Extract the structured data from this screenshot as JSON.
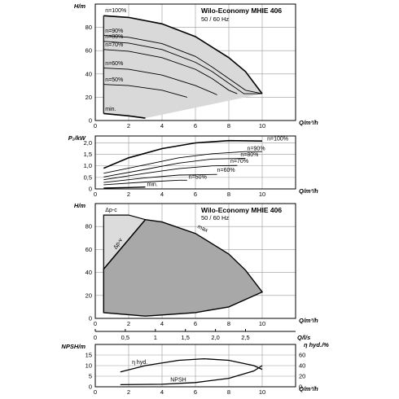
{
  "chart_data": [
    {
      "type": "line",
      "title": "Wilo-Economy MHIE 406",
      "subtitle": "50 / 60 Hz",
      "xlabel": "Q/m³/h",
      "ylabel": "H/m",
      "xlim": [
        0,
        12
      ],
      "ylim": [
        0,
        100
      ],
      "xticks": [
        0,
        2,
        4,
        6,
        8,
        10
      ],
      "yticks": [
        0,
        20,
        40,
        60,
        80
      ],
      "grid": true,
      "series": [
        {
          "name": "n=100%",
          "points": [
            [
              0.5,
              90
            ],
            [
              2,
              88.5
            ],
            [
              4,
              83
            ],
            [
              6,
              72
            ],
            [
              8,
              54
            ],
            [
              9,
              42
            ],
            [
              10,
              23
            ]
          ]
        },
        {
          "name": "n=90%",
          "points": [
            [
              0.5,
              73
            ],
            [
              2,
              71.5
            ],
            [
              4,
              66
            ],
            [
              6,
              55
            ],
            [
              7,
              46
            ],
            [
              8,
              36
            ],
            [
              9,
              26
            ],
            [
              10,
              23
            ]
          ]
        },
        {
          "name": "n=80%",
          "points": [
            [
              0.5,
              68
            ],
            [
              2,
              66.5
            ],
            [
              4,
              61
            ],
            [
              6,
              50
            ],
            [
              7,
              42
            ],
            [
              8,
              32
            ],
            [
              8.9,
              23
            ],
            [
              10,
              23
            ]
          ]
        },
        {
          "name": "n=70%",
          "points": [
            [
              0.5,
              61
            ],
            [
              2,
              59.5
            ],
            [
              4,
              54
            ],
            [
              6,
              44
            ],
            [
              7,
              36
            ],
            [
              8,
              26
            ],
            [
              8.5,
              23
            ]
          ]
        },
        {
          "name": "n=60%",
          "points": [
            [
              0.5,
              45
            ],
            [
              2,
              44
            ],
            [
              4,
              39
            ],
            [
              6,
              30
            ],
            [
              7,
              24
            ],
            [
              7.3,
              22
            ]
          ]
        },
        {
          "name": "n=50%",
          "points": [
            [
              0.5,
              31
            ],
            [
              2,
              30
            ],
            [
              4,
              26
            ],
            [
              5.5,
              20
            ]
          ]
        },
        {
          "name": "min.",
          "points": [
            [
              0.5,
              6
            ],
            [
              2,
              4
            ],
            [
              3,
              2
            ]
          ]
        }
      ]
    },
    {
      "type": "line",
      "xlabel": "Q/m³/h",
      "ylabel": "P₂/kW",
      "xlim": [
        0,
        12
      ],
      "ylim": [
        0,
        2.3
      ],
      "xticks": [
        0,
        2,
        4,
        6,
        8,
        10
      ],
      "yticks": [
        0,
        0.5,
        1.0,
        1.5,
        2.0
      ],
      "ytick_labels": [
        "0",
        "0,5",
        "1,0",
        "1,5",
        "2,0"
      ],
      "grid": true,
      "series": [
        {
          "name": "n=100%",
          "points": [
            [
              0.5,
              0.9
            ],
            [
              2,
              1.35
            ],
            [
              4,
              1.75
            ],
            [
              6,
              2.0
            ],
            [
              8,
              2.1
            ],
            [
              10,
              2.08
            ]
          ]
        },
        {
          "name": "n=90%",
          "points": [
            [
              0.5,
              0.68
            ],
            [
              3,
              1.05
            ],
            [
              5,
              1.35
            ],
            [
              7,
              1.53
            ],
            [
              9,
              1.62
            ],
            [
              10,
              1.62
            ]
          ]
        },
        {
          "name": "n=80%",
          "points": [
            [
              0.5,
              0.52
            ],
            [
              3,
              0.85
            ],
            [
              5,
              1.12
            ],
            [
              7,
              1.3
            ],
            [
              9,
              1.33
            ]
          ]
        },
        {
          "name": "n=70%",
          "points": [
            [
              0.5,
              0.4
            ],
            [
              3,
              0.68
            ],
            [
              5,
              0.88
            ],
            [
              7,
              1.0
            ],
            [
              8.5,
              1.02
            ]
          ]
        },
        {
          "name": "n=60%",
          "points": [
            [
              0.5,
              0.28
            ],
            [
              3,
              0.48
            ],
            [
              5,
              0.6
            ],
            [
              7.3,
              0.63
            ]
          ]
        },
        {
          "name": "n=50%",
          "points": [
            [
              0.5,
              0.18
            ],
            [
              3,
              0.3
            ],
            [
              5,
              0.38
            ],
            [
              5.5,
              0.38
            ]
          ]
        },
        {
          "name": "min.",
          "points": [
            [
              0.5,
              0.04
            ],
            [
              2,
              0.06
            ],
            [
              3,
              0.08
            ]
          ]
        }
      ]
    },
    {
      "type": "area",
      "title": "Wilo-Economy MHIE 406",
      "subtitle": "50 / 60 Hz",
      "xlabel": "Q/m³/h",
      "x2label": "Q/l/s",
      "ylabel": "H/m",
      "xlim": [
        0,
        12
      ],
      "ylim": [
        0,
        100
      ],
      "xticks": [
        0,
        2,
        4,
        6,
        8,
        10
      ],
      "x2ticks": [
        0,
        0.5,
        1,
        1.5,
        2.0,
        2.5
      ],
      "x2tick_labels": [
        "0",
        "0,5",
        "1",
        "1,5",
        "2,0",
        "2,5"
      ],
      "yticks": [
        0,
        20,
        40,
        60,
        80
      ],
      "grid": true,
      "regions": [
        {
          "name": "Δp-c",
          "points": [
            [
              0.5,
              90
            ],
            [
              2,
              90
            ],
            [
              3,
              86
            ],
            [
              0.5,
              43
            ]
          ]
        },
        {
          "name": "Δp-v",
          "points": [
            [
              0.5,
              43
            ],
            [
              3,
              86
            ]
          ]
        },
        {
          "name": "max",
          "points": [
            [
              0.5,
              43
            ],
            [
              3,
              86
            ],
            [
              4,
              84
            ],
            [
              6,
              74
            ],
            [
              8,
              56
            ],
            [
              9,
              42
            ],
            [
              10,
              23
            ],
            [
              8,
              10
            ],
            [
              6,
              5
            ],
            [
              4,
              3
            ],
            [
              3,
              2
            ],
            [
              0.5,
              5
            ]
          ]
        }
      ]
    },
    {
      "type": "line",
      "xlabel": "Q/m³/h",
      "ylabel": "NPSH/m",
      "y2label": "η hyd./%",
      "xlim": [
        0,
        12
      ],
      "ylim": [
        0,
        20
      ],
      "y2lim": [
        0,
        80
      ],
      "xticks": [
        0,
        2,
        4,
        6,
        8,
        10
      ],
      "yticks": [
        0,
        5,
        10,
        15
      ],
      "y2ticks": [
        0,
        20,
        40,
        60
      ],
      "grid": true,
      "series": [
        {
          "name": "η hyd.",
          "axis": "y2",
          "points": [
            [
              1.5,
              28
            ],
            [
              3,
              40
            ],
            [
              5,
              50
            ],
            [
              6.5,
              53
            ],
            [
              8,
              50
            ],
            [
              9.5,
              40
            ],
            [
              10,
              33
            ]
          ]
        },
        {
          "name": "NPSH",
          "axis": "y",
          "points": [
            [
              1.5,
              1
            ],
            [
              4,
              1.2
            ],
            [
              6,
              2
            ],
            [
              8,
              4
            ],
            [
              9.5,
              7.5
            ],
            [
              10,
              10
            ]
          ]
        }
      ]
    }
  ]
}
